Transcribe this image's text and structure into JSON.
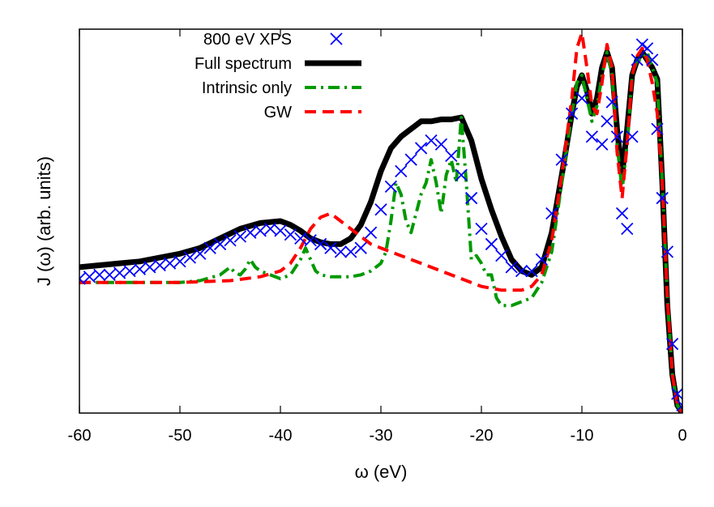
{
  "chart_data": {
    "type": "line",
    "xlabel": "ω (eV)",
    "ylabel": "J (ω) (arb. units)",
    "xlim": [
      -60,
      0
    ],
    "ylim": [
      0,
      1
    ],
    "xticks": [
      -60,
      -50,
      -40,
      -30,
      -20,
      -10,
      0
    ],
    "xtick_labels": [
      "-60",
      "-50",
      "-40",
      "-30",
      "-20",
      "-10",
      "0"
    ],
    "grid": false,
    "legend_position": "top-left",
    "series": [
      {
        "name": "800 eV XPS",
        "style": "markers",
        "marker": "x",
        "color": "#0000ff",
        "x": [
          -60,
          -59,
          -58,
          -57,
          -56,
          -55,
          -54,
          -53,
          -52,
          -51,
          -50,
          -49,
          -48,
          -47,
          -46,
          -45,
          -44,
          -43,
          -42,
          -41,
          -40,
          -39,
          -38,
          -37,
          -36,
          -35,
          -34,
          -33,
          -32,
          -31,
          -30,
          -29,
          -28,
          -27,
          -26,
          -25,
          -24,
          -23,
          -22,
          -21,
          -20,
          -19,
          -18,
          -17,
          -16,
          -15,
          -14,
          -13,
          -12,
          -11,
          -10,
          -9,
          -8,
          -7.5,
          -7,
          -6.5,
          -6,
          -5.5,
          -5,
          -4.5,
          -4,
          -3.5,
          -3,
          -2.5,
          -2,
          -1.5,
          -1,
          -0.5,
          0
        ],
        "y": [
          0.35,
          0.355,
          0.36,
          0.36,
          0.365,
          0.37,
          0.375,
          0.38,
          0.385,
          0.39,
          0.395,
          0.405,
          0.415,
          0.43,
          0.44,
          0.45,
          0.46,
          0.47,
          0.475,
          0.48,
          0.475,
          0.465,
          0.455,
          0.45,
          0.44,
          0.43,
          0.42,
          0.42,
          0.43,
          0.47,
          0.53,
          0.59,
          0.63,
          0.66,
          0.69,
          0.71,
          0.7,
          0.67,
          0.62,
          0.56,
          0.48,
          0.44,
          0.41,
          0.38,
          0.37,
          0.37,
          0.4,
          0.52,
          0.66,
          0.78,
          0.82,
          0.72,
          0.7,
          0.76,
          0.81,
          0.72,
          0.52,
          0.48,
          0.72,
          0.92,
          0.96,
          0.95,
          0.92,
          0.74,
          0.56,
          0.42,
          0.18,
          0.05,
          0.02
        ]
      },
      {
        "name": "Full spectrum",
        "style": "solid",
        "color": "#000000",
        "x": [
          -60,
          -58,
          -56,
          -54,
          -52,
          -50,
          -48,
          -46,
          -44,
          -42,
          -40,
          -39,
          -38,
          -37,
          -36,
          -35,
          -34,
          -33,
          -32,
          -31,
          -30,
          -29,
          -28,
          -27,
          -26,
          -25,
          -24,
          -23,
          -22,
          -21,
          -20,
          -19,
          -18,
          -17,
          -16,
          -15,
          -14,
          -13,
          -12,
          -11,
          -10.5,
          -10,
          -9.5,
          -9,
          -8.5,
          -8,
          -7.5,
          -7,
          -6.5,
          -6,
          -5.5,
          -5,
          -4.5,
          -4,
          -3.5,
          -3,
          -2.5,
          -2,
          -1.5,
          -1,
          -0.5,
          0
        ],
        "y": [
          0.38,
          0.385,
          0.39,
          0.395,
          0.405,
          0.415,
          0.43,
          0.455,
          0.48,
          0.495,
          0.5,
          0.49,
          0.475,
          0.455,
          0.445,
          0.44,
          0.44,
          0.455,
          0.49,
          0.55,
          0.63,
          0.69,
          0.72,
          0.74,
          0.76,
          0.76,
          0.765,
          0.765,
          0.77,
          0.71,
          0.61,
          0.53,
          0.46,
          0.4,
          0.37,
          0.36,
          0.38,
          0.47,
          0.62,
          0.78,
          0.85,
          0.88,
          0.84,
          0.78,
          0.82,
          0.9,
          0.94,
          0.9,
          0.74,
          0.62,
          0.74,
          0.88,
          0.92,
          0.94,
          0.92,
          0.9,
          0.87,
          0.6,
          0.28,
          0.1,
          0.02,
          0.0
        ]
      },
      {
        "name": "Intrinsic only",
        "style": "dash-dot",
        "color": "#009900",
        "x": [
          -60,
          -55,
          -50,
          -48,
          -46,
          -45,
          -44.5,
          -44,
          -43.5,
          -43,
          -42.5,
          -42,
          -41,
          -40,
          -39,
          -38,
          -37.5,
          -37,
          -36.5,
          -36,
          -35,
          -34,
          -33,
          -32,
          -31,
          -30,
          -29.5,
          -29,
          -28.5,
          -28,
          -27.5,
          -27,
          -26.5,
          -26,
          -25.5,
          -25,
          -24.5,
          -24,
          -23.5,
          -23,
          -22.5,
          -22,
          -21.5,
          -21,
          -20.5,
          -20,
          -19.5,
          -19,
          -18.5,
          -18,
          -17,
          -16,
          -15,
          -14,
          -13,
          -12,
          -11,
          -10.5,
          -10,
          -9.5,
          -9,
          -8.5,
          -8,
          -7.5,
          -7,
          -6.5,
          -6,
          -5.5,
          -5,
          -4.5,
          -4,
          -3.5,
          -3,
          -2.5,
          -2,
          -1.5,
          -1,
          -0.5,
          0
        ],
        "y": [
          0.34,
          0.34,
          0.34,
          0.345,
          0.36,
          0.38,
          0.365,
          0.36,
          0.375,
          0.4,
          0.38,
          0.37,
          0.36,
          0.35,
          0.36,
          0.4,
          0.43,
          0.4,
          0.37,
          0.36,
          0.355,
          0.355,
          0.355,
          0.36,
          0.37,
          0.39,
          0.42,
          0.5,
          0.6,
          0.57,
          0.5,
          0.47,
          0.52,
          0.57,
          0.6,
          0.66,
          0.6,
          0.52,
          0.62,
          0.66,
          0.6,
          0.77,
          0.6,
          0.4,
          0.41,
          0.39,
          0.36,
          0.36,
          0.3,
          0.28,
          0.28,
          0.29,
          0.3,
          0.34,
          0.42,
          0.6,
          0.78,
          0.86,
          0.88,
          0.82,
          0.76,
          0.8,
          0.88,
          0.94,
          0.88,
          0.7,
          0.58,
          0.7,
          0.88,
          0.92,
          0.92,
          0.94,
          0.9,
          0.86,
          0.6,
          0.3,
          0.1,
          0.02,
          0.0
        ]
      },
      {
        "name": "GW",
        "style": "dashed",
        "color": "#ff0000",
        "x": [
          -60,
          -55,
          -50,
          -45,
          -42,
          -40,
          -39,
          -38,
          -37,
          -36,
          -35,
          -34,
          -33,
          -32,
          -31,
          -30,
          -28,
          -26,
          -24,
          -22,
          -20,
          -18,
          -16,
          -15,
          -14,
          -13,
          -12,
          -11,
          -10.5,
          -10,
          -9.5,
          -9,
          -8.5,
          -8,
          -7.5,
          -7,
          -6.5,
          -6,
          -5.5,
          -5,
          -4.5,
          -4,
          -3.5,
          -3,
          -2.5,
          -2,
          -1.5,
          -1,
          -0.5,
          0
        ],
        "y": [
          0.34,
          0.34,
          0.34,
          0.345,
          0.355,
          0.37,
          0.39,
          0.43,
          0.48,
          0.51,
          0.52,
          0.5,
          0.48,
          0.46,
          0.44,
          0.43,
          0.41,
          0.39,
          0.37,
          0.35,
          0.33,
          0.32,
          0.32,
          0.33,
          0.36,
          0.45,
          0.62,
          0.82,
          0.95,
          0.99,
          0.9,
          0.8,
          0.78,
          0.86,
          0.96,
          0.9,
          0.68,
          0.56,
          0.7,
          0.88,
          0.93,
          0.95,
          0.92,
          0.86,
          0.78,
          0.6,
          0.3,
          0.1,
          0.02,
          0.0
        ]
      }
    ]
  }
}
